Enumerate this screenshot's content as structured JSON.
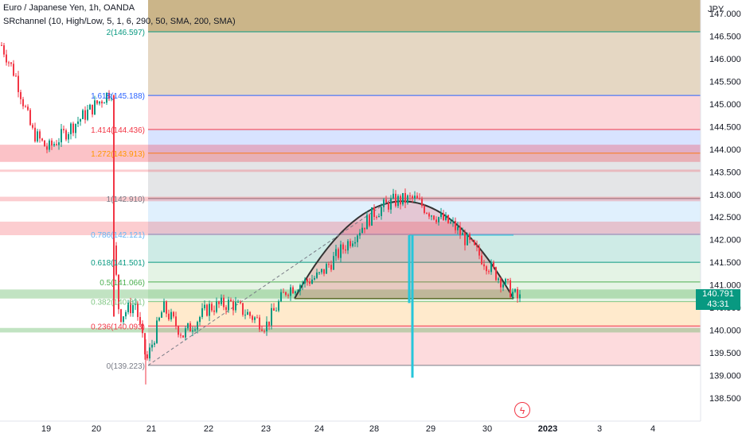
{
  "header": {
    "title": "Euro / Japanese Yen, 1h, OANDA",
    "indicator": "SRchannel (10, High/Low, 5, 1, 6, 290, 50, SMA, 200, SMA)"
  },
  "price_axis": {
    "unit": "JPY",
    "ticks": [
      "138.500",
      "139.000",
      "139.500",
      "140.000",
      "140.500",
      "141.000",
      "141.500",
      "142.000",
      "142.500",
      "143.000",
      "143.500",
      "144.000",
      "144.500",
      "145.000",
      "145.500",
      "146.000",
      "146.500",
      "147.000"
    ]
  },
  "time_axis": {
    "ticks": [
      "19",
      "20",
      "21",
      "22",
      "23",
      "24",
      "28",
      "29",
      "30",
      "2023",
      "3",
      "4"
    ]
  },
  "last_price": {
    "price": "140.791",
    "countdown": "43:31"
  },
  "fib_levels": [
    {
      "ratio": "0",
      "price": 139.223,
      "label": "0(139.223)",
      "color": "#787b86"
    },
    {
      "ratio": "0.236",
      "price": 140.093,
      "label": "0.236(140.093)",
      "color": "#f23645"
    },
    {
      "ratio": "0.382",
      "price": 140.631,
      "label": "0.382(140.631)",
      "color": "#81c784"
    },
    {
      "ratio": "0.5",
      "price": 141.066,
      "label": "0.5(141.066)",
      "color": "#4caf50"
    },
    {
      "ratio": "0.618",
      "price": 141.501,
      "label": "0.618(141.501)",
      "color": "#089981"
    },
    {
      "ratio": "0.786",
      "price": 142.121,
      "label": "0.786(142.121)",
      "color": "#64b5f6"
    },
    {
      "ratio": "1",
      "price": 142.91,
      "label": "1(142.910)",
      "color": "#787b86"
    },
    {
      "ratio": "1.272",
      "price": 143.913,
      "label": "1.272(143.913)",
      "color": "#ff9800"
    },
    {
      "ratio": "1.414",
      "price": 144.436,
      "label": "1.414(144.436)",
      "color": "#f23645"
    },
    {
      "ratio": "1.618",
      "price": 145.188,
      "label": "1.618(145.188)",
      "color": "#2962ff"
    },
    {
      "ratio": "2",
      "price": 146.597,
      "label": "2(146.597)",
      "color": "#089981"
    }
  ],
  "chart_data": {
    "type": "candlestick",
    "title": "Euro / Japanese Yen, 1h, OANDA",
    "x_labels": [
      "19",
      "20",
      "21",
      "22",
      "23",
      "24",
      "28",
      "29",
      "30",
      "2023",
      "3",
      "4"
    ],
    "y_range": [
      138.3,
      147.1
    ],
    "series": [
      {
        "name": "EURJPY 1h",
        "close_path": [
          [
            146.3,
            "19 early"
          ],
          [
            145.6,
            "19"
          ],
          [
            144.4,
            "19 late"
          ],
          [
            144.0,
            "19/20"
          ],
          [
            144.5,
            "20"
          ],
          [
            145.3,
            "20"
          ],
          [
            142.0,
            "20 late"
          ],
          [
            139.8,
            "20/21"
          ],
          [
            139.5,
            "21"
          ],
          [
            140.5,
            "21"
          ],
          [
            140.2,
            "22"
          ],
          [
            140.4,
            "22"
          ],
          [
            140.1,
            "23"
          ],
          [
            140.8,
            "23"
          ],
          [
            141.2,
            "24"
          ],
          [
            142.2,
            "24/28"
          ],
          [
            142.9,
            "28"
          ],
          [
            142.6,
            "28/29"
          ],
          [
            142.9,
            "29"
          ],
          [
            142.2,
            "29/30"
          ],
          [
            141.6,
            "30"
          ],
          [
            140.7,
            "30"
          ]
        ]
      }
    ],
    "fibonacci": {
      "anchor_low": 139.223,
      "anchor_high": 142.91
    },
    "sr_channels": [
      [
        139.95,
        140.05
      ],
      [
        140.7,
        140.9
      ],
      [
        142.1,
        142.4
      ],
      [
        142.85,
        142.95
      ],
      [
        143.5,
        143.55
      ],
      [
        143.72,
        144.1
      ]
    ],
    "last_close": 140.791
  }
}
